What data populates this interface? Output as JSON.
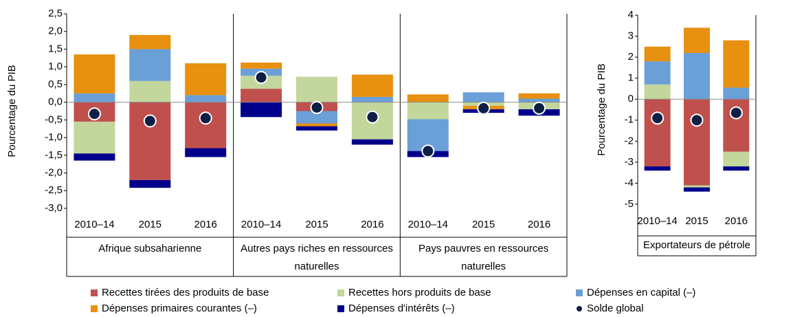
{
  "chart_data": [
    {
      "type": "stacked-bar",
      "ylabel": "Pourcentage du PIB",
      "categories": [
        "2010–14",
        "2015",
        "2016",
        "2010–14",
        "2015",
        "2016",
        "2010–14",
        "2015",
        "2016"
      ],
      "groups": [
        "Afrique subsaharienne",
        "Autres pays riches en ressources naturelles",
        "Pays pauvres en ressources naturelles"
      ],
      "ylim": [
        -3.0,
        2.5
      ],
      "yticks": [
        {
          "value": 2.5,
          "label": "2,5"
        },
        {
          "value": 2.0,
          "label": "2,0"
        },
        {
          "value": 1.5,
          "label": "1,5"
        },
        {
          "value": 1.0,
          "label": "1,0"
        },
        {
          "value": 0.5,
          "label": "0,5"
        },
        {
          "value": 0.0,
          "label": "0,0"
        },
        {
          "value": -0.5,
          "label": "-0,5"
        },
        {
          "value": -1.0,
          "label": "-1,0"
        },
        {
          "value": -1.5,
          "label": "-1,5"
        },
        {
          "value": -2.0,
          "label": "-2,0"
        },
        {
          "value": -2.5,
          "label": "-2,5"
        },
        {
          "value": -3.0,
          "label": "-3,0"
        }
      ],
      "series": [
        {
          "name": "Recettes tirées des produits de base",
          "color": "#c0504d",
          "values": [
            -0.55,
            -2.2,
            -1.3,
            0.38,
            -0.25,
            0,
            0,
            0,
            0
          ]
        },
        {
          "name": "Recettes hors produits de base",
          "color": "#c3d69b",
          "values": [
            -0.9,
            0.6,
            0,
            0.37,
            0.72,
            -1.05,
            -0.48,
            -0.1,
            -0.2
          ]
        },
        {
          "name": "Dépenses en capital (–)",
          "color": "#6a9fd8",
          "values": [
            0.25,
            0.9,
            0.2,
            0.2,
            -0.35,
            0.15,
            -0.9,
            0.28,
            0.1
          ]
        },
        {
          "name": "Dépenses primaires courantes (–)",
          "color": "#e8900f",
          "values": [
            1.1,
            0.4,
            0.9,
            0.17,
            -0.08,
            0.63,
            0.22,
            -0.1,
            0.15
          ]
        },
        {
          "name": "Dépenses d'intérêts (–)",
          "color": "#00008b",
          "values": [
            -0.2,
            -0.22,
            -0.25,
            -0.42,
            -0.12,
            -0.15,
            -0.17,
            -0.1,
            -0.18
          ]
        },
        {
          "name": "Solde global",
          "color": "#0d1f45",
          "marker": "dot",
          "values": [
            -0.33,
            -0.53,
            -0.45,
            0.7,
            -0.15,
            -0.42,
            -1.38,
            -0.17,
            -0.17
          ]
        }
      ]
    },
    {
      "type": "stacked-bar",
      "ylabel": "Pourcentage du PIB",
      "categories": [
        "2010–14",
        "2015",
        "2016"
      ],
      "groups": [
        "Exportateurs de pétrole"
      ],
      "ylim": [
        -5,
        4
      ],
      "yticks": [
        4,
        3,
        2,
        1,
        0,
        -1,
        -2,
        -3,
        -4,
        -5
      ],
      "series": [
        {
          "values": [
            -3.2,
            -4.1,
            -2.5
          ]
        },
        {
          "values": [
            0.7,
            -0.1,
            -0.7
          ]
        },
        {
          "values": [
            1.1,
            2.2,
            0.55
          ]
        },
        {
          "values": [
            0.7,
            1.2,
            2.25
          ]
        },
        {
          "values": [
            -0.2,
            -0.2,
            -0.2
          ]
        },
        {
          "values": [
            -0.9,
            -1.0,
            -0.65
          ]
        }
      ]
    }
  ]
}
